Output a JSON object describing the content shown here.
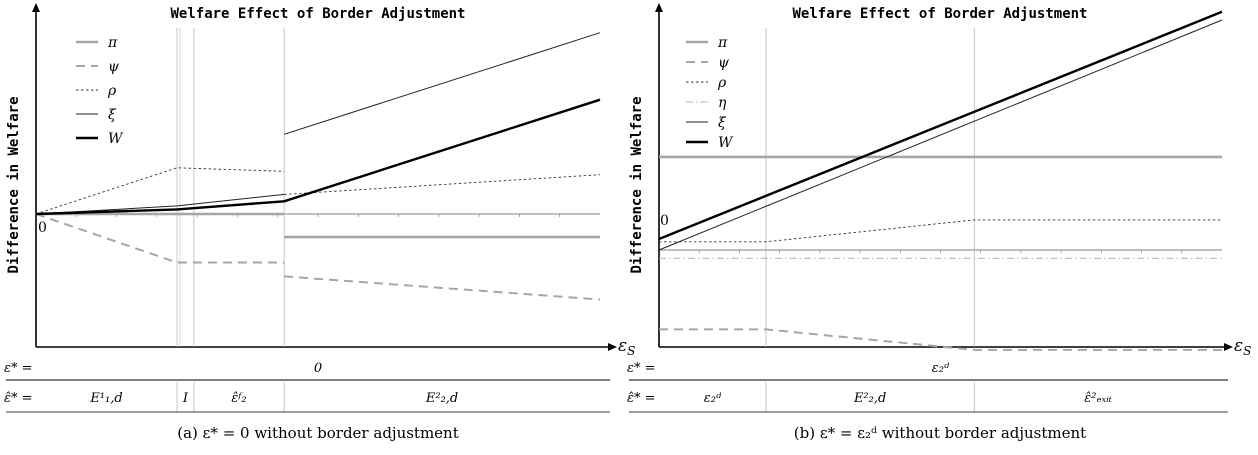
{
  "chart_data": [
    {
      "type": "line",
      "title": "Welfare Effect of Border Adjustment",
      "ylabel": "Difference in Welfare",
      "xlabel": "ε_S",
      "caption": "(a) ε* = 0 without border adjustment",
      "origin_label": "0",
      "row1": {
        "label": "ε* =",
        "regions": [
          {
            "text": "0",
            "from": 0,
            "to": 10
          }
        ]
      },
      "row2": {
        "label": "ε̂* =",
        "regions": [
          {
            "text": "E¹₁,d",
            "from": 0,
            "to": 2.5
          },
          {
            "text": "I",
            "from": 2.5,
            "to": 2.8
          },
          {
            "text": "ε̂ᶠ₂",
            "from": 2.8,
            "to": 4.4
          },
          {
            "text": "E²₂,d",
            "from": 4.4,
            "to": 10
          }
        ]
      },
      "xlim": [
        0,
        10
      ],
      "ylim": [
        -10,
        16
      ],
      "vlines": [
        2.5,
        2.8,
        4.4
      ],
      "series": [
        {
          "name": "π",
          "style": "pi",
          "segments": [
            [
              [
                0,
                0
              ],
              [
                4.4,
                0
              ]
            ],
            [
              [
                4.4,
                -2
              ],
              [
                10,
                -2
              ]
            ]
          ]
        },
        {
          "name": "ψ",
          "style": "psi",
          "segments": [
            [
              [
                0,
                0
              ],
              [
                2.5,
                -4.2
              ],
              [
                4.4,
                -4.2
              ]
            ],
            [
              [
                4.4,
                -5.4
              ],
              [
                10,
                -7.4
              ]
            ]
          ]
        },
        {
          "name": "ρ",
          "style": "rho",
          "segments": [
            [
              [
                0,
                0
              ],
              [
                2.5,
                4
              ],
              [
                2.5,
                4
              ],
              [
                4.4,
                3.7
              ]
            ],
            [
              [
                4.4,
                1.7
              ],
              [
                10,
                3.4
              ]
            ]
          ]
        },
        {
          "name": "ξ",
          "style": "xi",
          "segments": [
            [
              [
                0,
                0
              ],
              [
                2.5,
                0.7
              ],
              [
                4.4,
                1.7
              ]
            ],
            [
              [
                4.4,
                6.9
              ],
              [
                10,
                15.7
              ]
            ]
          ]
        },
        {
          "name": "W",
          "style": "w",
          "segments": [
            [
              [
                0,
                0
              ],
              [
                2.5,
                0.4
              ],
              [
                4.4,
                1.1
              ],
              [
                10,
                9.9
              ]
            ]
          ]
        }
      ]
    },
    {
      "type": "line",
      "title": "Welfare Effect of Border Adjustment",
      "ylabel": "Difference in Welfare",
      "xlabel": "ε_S",
      "caption": "(b) ε* = ε₂ᵈ without border adjustment",
      "origin_label": "0",
      "row1": {
        "label": "ε* =",
        "regions": [
          {
            "text": "ε₂ᵈ",
            "from": 0,
            "to": 10
          }
        ]
      },
      "row2": {
        "label": "ε̂* =",
        "regions": [
          {
            "text": "ε₂ᵈ",
            "from": 0,
            "to": 1.9
          },
          {
            "text": "E²₂,d",
            "from": 1.9,
            "to": 5.6
          },
          {
            "text": "ε̂²ₑₓᵢₜ",
            "from": 5.6,
            "to": 10
          }
        ]
      },
      "xlim": [
        0,
        10
      ],
      "ylim": [
        -10,
        16
      ],
      "vlines": [
        1.9,
        5.6
      ],
      "series": [
        {
          "name": "π",
          "style": "pi",
          "segments": [
            [
              [
                0,
                6.8
              ],
              [
                10,
                6.8
              ]
            ]
          ]
        },
        {
          "name": "ψ",
          "style": "psi",
          "segments": [
            [
              [
                0,
                -5.8
              ],
              [
                1.9,
                -5.8
              ],
              [
                5.6,
                -7.3
              ],
              [
                10,
                -7.3
              ]
            ]
          ]
        },
        {
          "name": "ρ",
          "style": "rho",
          "segments": [
            [
              [
                0,
                0.6
              ],
              [
                1.9,
                0.6
              ],
              [
                5.6,
                2.2
              ],
              [
                10,
                2.2
              ]
            ]
          ]
        },
        {
          "name": "η",
          "style": "eta",
          "segments": [
            [
              [
                0,
                -0.6
              ],
              [
                10,
                -0.6
              ]
            ]
          ]
        },
        {
          "name": "ξ",
          "style": "xi",
          "segments": [
            [
              [
                0,
                0
              ],
              [
                10,
                16.8
              ]
            ]
          ]
        },
        {
          "name": "W",
          "style": "w",
          "segments": [
            [
              [
                0,
                0.8
              ],
              [
                10,
                17.4
              ]
            ]
          ]
        }
      ]
    }
  ],
  "styles": {
    "pi": {
      "color": "#a6a6a6",
      "width": 2.6,
      "dash": ""
    },
    "psi": {
      "color": "#a6a6a6",
      "width": 2,
      "dash": "9,6"
    },
    "rho": {
      "color": "#333333",
      "width": 0.9,
      "dash": "2.5,2.5"
    },
    "eta": {
      "color": "#b0b0b0",
      "width": 1,
      "dash": "7,3,1.5,3"
    },
    "xi": {
      "color": "#222222",
      "width": 1,
      "dash": ""
    },
    "w": {
      "color": "#000000",
      "width": 2.4,
      "dash": ""
    }
  }
}
